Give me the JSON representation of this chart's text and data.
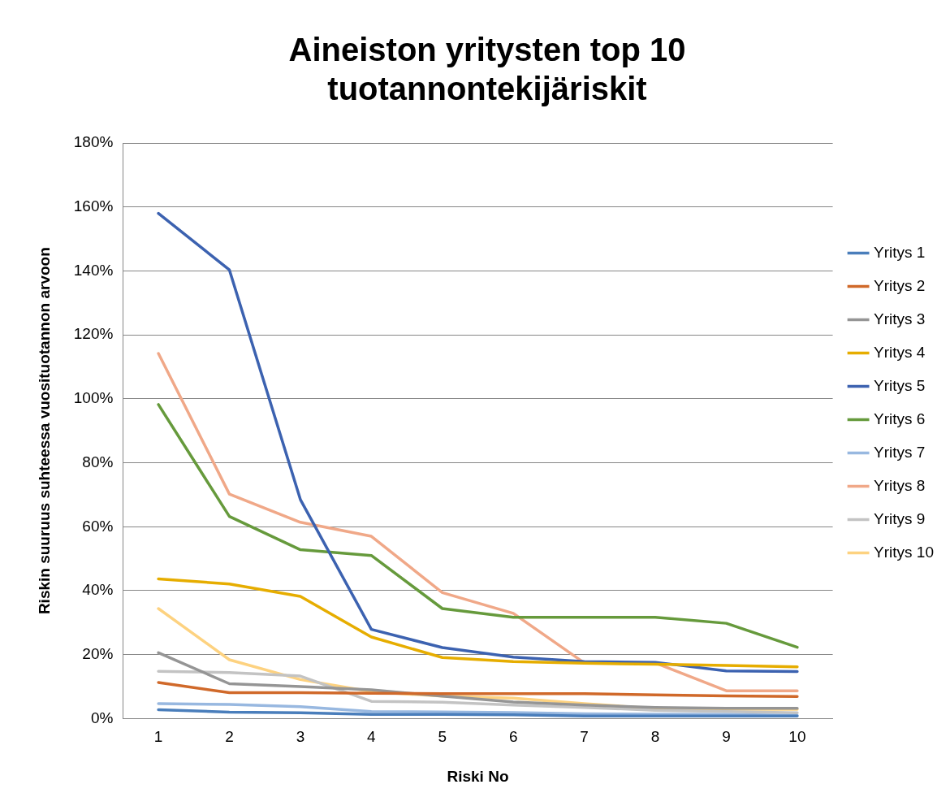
{
  "chart_data": {
    "type": "line",
    "title": "Aineiston yritysten top 10 tuotannontekijäriskit",
    "xlabel": "Riski No",
    "ylabel": "Riskin suuruus suhteessa vuosituotannon arvoon",
    "categories": [
      "1",
      "2",
      "3",
      "4",
      "5",
      "6",
      "7",
      "8",
      "9",
      "10"
    ],
    "ylim": [
      0,
      180
    ],
    "yticks": [
      {
        "value": 0,
        "label": "0%"
      },
      {
        "value": 20,
        "label": "20%"
      },
      {
        "value": 40,
        "label": "40%"
      },
      {
        "value": 60,
        "label": "60%"
      },
      {
        "value": 80,
        "label": "80%"
      },
      {
        "value": 100,
        "label": "100%"
      },
      {
        "value": 120,
        "label": "120%"
      },
      {
        "value": 140,
        "label": "140%"
      },
      {
        "value": 160,
        "label": "160%"
      },
      {
        "value": 180,
        "label": "180%"
      }
    ],
    "grid": "y",
    "legend": "right",
    "marker": "none",
    "line_style": "solid",
    "series": [
      {
        "name": "Yritys 1",
        "color": "#4a7ebb",
        "values": [
          2.8,
          2.0,
          1.8,
          1.3,
          1.3,
          1.2,
          0.8,
          0.8,
          0.8,
          0.8
        ]
      },
      {
        "name": "Yritys 2",
        "color": "#d0692a",
        "values": [
          11.3,
          8.1,
          8.1,
          7.9,
          7.8,
          7.8,
          7.8,
          7.4,
          7.1,
          6.9
        ]
      },
      {
        "name": "Yritys 3",
        "color": "#959595",
        "values": [
          20.6,
          10.9,
          10.0,
          9.0,
          7.0,
          5.2,
          4.2,
          3.5,
          3.2,
          3.2
        ]
      },
      {
        "name": "Yritys 4",
        "color": "#e6ad00",
        "values": [
          43.7,
          42.1,
          38.2,
          25.5,
          19.1,
          17.8,
          17.3,
          17.0,
          16.6,
          16.2
        ]
      },
      {
        "name": "Yritys 5",
        "color": "#3c62b0",
        "values": [
          158,
          140.3,
          68.5,
          27.9,
          22.2,
          19.2,
          17.8,
          17.6,
          14.9,
          14.7
        ]
      },
      {
        "name": "Yritys 6",
        "color": "#669a3c",
        "values": [
          98.2,
          63.2,
          52.8,
          51.0,
          34.4,
          31.7,
          31.7,
          31.7,
          29.8,
          22.3
        ]
      },
      {
        "name": "Yritys 7",
        "color": "#98b8e0",
        "values": [
          4.7,
          4.4,
          3.7,
          2.2,
          2.1,
          1.9,
          1.5,
          1.4,
          1.3,
          1.0
        ]
      },
      {
        "name": "Yritys 8",
        "color": "#f0a888",
        "values": [
          114.2,
          70.2,
          61.4,
          57.0,
          39.4,
          32.9,
          17.4,
          17.4,
          8.7,
          8.7
        ]
      },
      {
        "name": "Yritys 9",
        "color": "#c3c3c3",
        "values": [
          14.8,
          14.4,
          13.3,
          5.4,
          5.1,
          4.2,
          3.5,
          2.6,
          2.2,
          1.8
        ]
      },
      {
        "name": "Yritys 10",
        "color": "#fdd280",
        "values": [
          34.4,
          18.4,
          12.2,
          8.4,
          7.0,
          6.4,
          4.7,
          3.1,
          2.9,
          2.9
        ]
      }
    ]
  }
}
